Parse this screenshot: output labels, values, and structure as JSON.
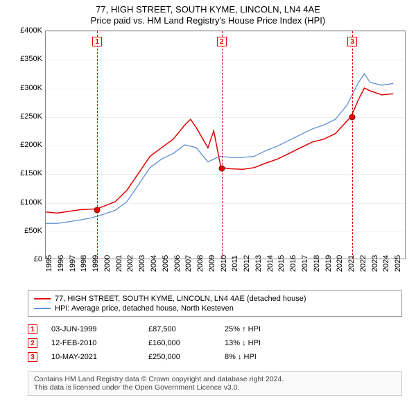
{
  "title": {
    "line1": "77, HIGH STREET, SOUTH KYME, LINCOLN, LN4 4AE",
    "line2": "Price paid vs. HM Land Registry's House Price Index (HPI)"
  },
  "chart": {
    "type": "line",
    "xlim": [
      1995,
      2026
    ],
    "ylim": [
      0,
      400000
    ],
    "ytick_step": 50000,
    "yticks_labels": [
      "£0",
      "£50K",
      "£100K",
      "£150K",
      "£200K",
      "£250K",
      "£300K",
      "£350K",
      "£400K"
    ],
    "xticks": [
      1995,
      1996,
      1997,
      1998,
      1999,
      2000,
      2001,
      2002,
      2003,
      2004,
      2005,
      2006,
      2007,
      2008,
      2009,
      2010,
      2011,
      2012,
      2013,
      2014,
      2015,
      2016,
      2017,
      2018,
      2019,
      2020,
      2021,
      2022,
      2023,
      2024,
      2025
    ],
    "grid_color": "#eeeeee",
    "border_color": "#888888",
    "background_color": "#ffffff",
    "series": [
      {
        "name": "property",
        "label": "77, HIGH STREET, SOUTH KYME, LINCOLN, LN4 4AE (detached house)",
        "color": "#e00000",
        "line_width": 1.5,
        "data": [
          [
            1995,
            82000
          ],
          [
            1996,
            80000
          ],
          [
            1997,
            83000
          ],
          [
            1998,
            86000
          ],
          [
            1999.42,
            87500
          ],
          [
            2000,
            92000
          ],
          [
            2001,
            100000
          ],
          [
            2002,
            120000
          ],
          [
            2003,
            150000
          ],
          [
            2004,
            180000
          ],
          [
            2005,
            195000
          ],
          [
            2006,
            210000
          ],
          [
            2007,
            235000
          ],
          [
            2007.5,
            245000
          ],
          [
            2008,
            230000
          ],
          [
            2009,
            195000
          ],
          [
            2009.5,
            225000
          ],
          [
            2010.12,
            160000
          ],
          [
            2011,
            158000
          ],
          [
            2012,
            157000
          ],
          [
            2013,
            160000
          ],
          [
            2014,
            168000
          ],
          [
            2015,
            175000
          ],
          [
            2016,
            185000
          ],
          [
            2017,
            195000
          ],
          [
            2018,
            205000
          ],
          [
            2019,
            210000
          ],
          [
            2020,
            220000
          ],
          [
            2021.36,
            250000
          ],
          [
            2022,
            280000
          ],
          [
            2022.5,
            300000
          ],
          [
            2023,
            295000
          ],
          [
            2024,
            288000
          ],
          [
            2025,
            290000
          ]
        ]
      },
      {
        "name": "hpi",
        "label": "HPI: Average price, detached house, North Kesteven",
        "color": "#5b8fd6",
        "line_width": 1.3,
        "data": [
          [
            1995,
            62000
          ],
          [
            1996,
            62000
          ],
          [
            1997,
            65000
          ],
          [
            1998,
            68000
          ],
          [
            1999,
            72000
          ],
          [
            2000,
            78000
          ],
          [
            2001,
            85000
          ],
          [
            2002,
            100000
          ],
          [
            2003,
            130000
          ],
          [
            2004,
            160000
          ],
          [
            2005,
            175000
          ],
          [
            2006,
            185000
          ],
          [
            2007,
            200000
          ],
          [
            2008,
            195000
          ],
          [
            2009,
            170000
          ],
          [
            2010,
            180000
          ],
          [
            2011,
            178000
          ],
          [
            2012,
            178000
          ],
          [
            2013,
            180000
          ],
          [
            2014,
            190000
          ],
          [
            2015,
            198000
          ],
          [
            2016,
            208000
          ],
          [
            2017,
            218000
          ],
          [
            2018,
            228000
          ],
          [
            2019,
            235000
          ],
          [
            2020,
            245000
          ],
          [
            2021,
            270000
          ],
          [
            2022,
            310000
          ],
          [
            2022.5,
            325000
          ],
          [
            2023,
            310000
          ],
          [
            2024,
            305000
          ],
          [
            2025,
            308000
          ]
        ]
      }
    ],
    "markers": [
      {
        "n": "1",
        "x": 1999.42,
        "y": 87500,
        "color": "#e00000"
      },
      {
        "n": "2",
        "x": 2010.12,
        "y": 160000,
        "color": "#e00000"
      },
      {
        "n": "3",
        "x": 2021.36,
        "y": 250000,
        "color": "#e00000"
      }
    ]
  },
  "legend": {
    "rows": [
      {
        "color": "#e00000",
        "label": "77, HIGH STREET, SOUTH KYME, LINCOLN, LN4 4AE (detached house)"
      },
      {
        "color": "#5b8fd6",
        "label": "HPI: Average price, detached house, North Kesteven"
      }
    ]
  },
  "sales": [
    {
      "n": "1",
      "date": "03-JUN-1999",
      "price": "£87,500",
      "diff": "25% ↑ HPI"
    },
    {
      "n": "2",
      "date": "12-FEB-2010",
      "price": "£160,000",
      "diff": "13% ↓ HPI"
    },
    {
      "n": "3",
      "date": "10-MAY-2021",
      "price": "£250,000",
      "diff": "8% ↓ HPI"
    }
  ],
  "footer": {
    "line1": "Contains HM Land Registry data © Crown copyright and database right 2024.",
    "line2": "This data is licensed under the Open Government Licence v3.0."
  }
}
